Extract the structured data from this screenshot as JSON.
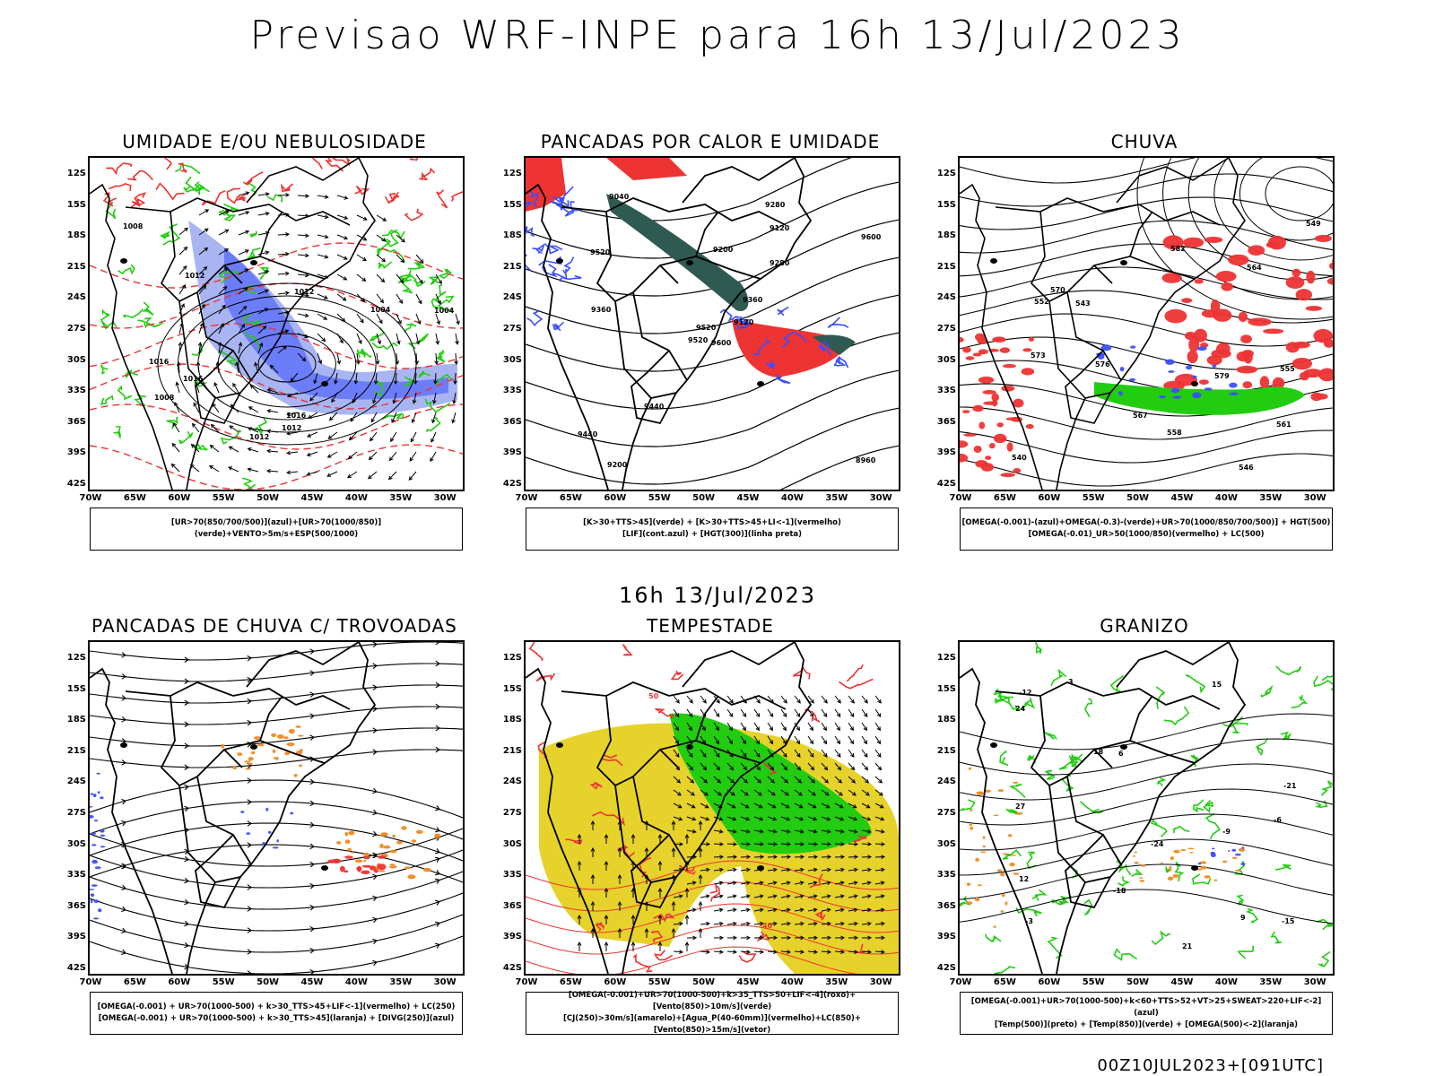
{
  "header": {
    "title": "Previsao WRF-INPE  para 16h 13/Jul/2023",
    "subtitle": "16h 13/Jul/2023",
    "footer": "00Z10JUL2023+[091UTC]"
  },
  "axes": {
    "lat_labels": [
      "12S",
      "15S",
      "18S",
      "21S",
      "24S",
      "27S",
      "30S",
      "33S",
      "36S",
      "39S",
      "42S"
    ],
    "lon_labels": [
      "70W",
      "65W",
      "60W",
      "55W",
      "50W",
      "45W",
      "40W",
      "35W",
      "30W"
    ]
  },
  "colors": {
    "blue": "#3a4fff",
    "light_blue": "#9aa8f0",
    "green": "#22cc11",
    "red": "#ee3333",
    "orange": "#f08a20",
    "yellow": "#e6d22a",
    "dark_teal": "#2e5a52",
    "black": "#000000"
  },
  "panels": [
    {
      "id": "umidade",
      "title": "UMIDADE E/OU NEBULOSIDADE",
      "legend": [
        "[UR>70(850/700/500)](azul)+[UR>70(1000/850)](verde)+VENTO>5m/s+ESP(500/1000)"
      ],
      "contour_labels": [
        "1012",
        "1016",
        "1012",
        "1008",
        "1004",
        "1008",
        "1012",
        "1016",
        "1004",
        "1012",
        "1016"
      ]
    },
    {
      "id": "pancadas_calor",
      "title": "PANCADAS POR CALOR E UMIDADE",
      "legend": [
        "[K>30+TTS>45](verde) + [K>30+TTS>45+LI<-1](vermelho)",
        "[LIF](cont.azul) + [HGT(300)](linha preta)"
      ],
      "contour_labels": [
        "9600",
        "9520",
        "9520",
        "9440",
        "9360",
        "9440",
        "9280",
        "9200",
        "9120",
        "9120",
        "9040",
        "8960",
        "9360",
        "9600",
        "9520",
        "9280",
        "9200"
      ]
    },
    {
      "id": "chuva",
      "title": "CHUVA",
      "legend": [
        "[OMEGA(-0.001)-(azul)+OMEGA(-0.3)-(verde)+UR>70(1000/850/700/500)] + HGT(500)",
        "[OMEGA(-0.01)_UR>50(1000/850)(vermelho) + LC(500)"
      ],
      "contour_labels": [
        "582",
        "579",
        "576",
        "573",
        "570",
        "567",
        "564",
        "561",
        "558",
        "555",
        "552",
        "549",
        "546",
        "543",
        "540"
      ]
    },
    {
      "id": "pancadas_trovoadas",
      "title": "PANCADAS DE CHUVA C/ TROVOADAS",
      "legend": [
        "[OMEGA(-0.001) + UR>70(1000-500) + k>30_TTS>45+LIF<-1](vermelho) + LC(250)",
        "[OMEGA(-0.001) + UR>70(1000-500) + k>30_TTS>45](laranja) + [DIVG(250)](azul)"
      ]
    },
    {
      "id": "tempestade",
      "title": "TEMPESTADE",
      "legend": [
        "[OMEGA(-0.001)+UR>70(1000-500)+k>35_TTS>50+LIF<-4](roxo)+[Vento(850)>10m/s](verde)",
        "[CJ(250)>30m/s](amarelo)+[Agua_P(40-60mm)](vermelho)+LC(850)+[Vento(850)>15m/s](vetor)"
      ],
      "contour_labels": [
        "40",
        "50"
      ]
    },
    {
      "id": "granizo",
      "title": "GRANIZO",
      "legend": [
        "[OMEGA(-0.001)+UR>70(1000-500)+k<60+TTS>52+VT>25+SWEAT>220+LIF<-2](azul)",
        "[Temp(500)](preto) + [Temp(850)](verde) + [OMEGA(500)<-2](laranja)"
      ],
      "contour_labels": [
        "-9",
        "-6",
        "-3",
        "3",
        "6",
        "9",
        "12",
        "15",
        "18",
        "21",
        "24",
        "27",
        "-12",
        "-15",
        "-18",
        "-21",
        "-24"
      ]
    }
  ]
}
